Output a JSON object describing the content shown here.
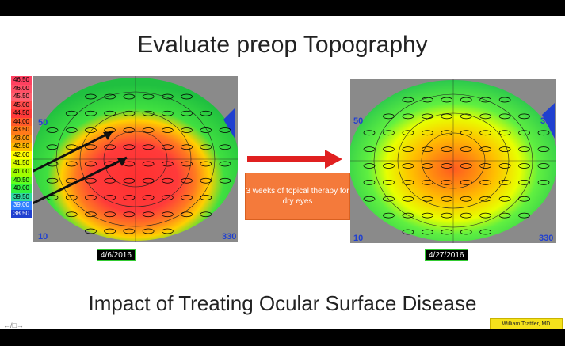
{
  "slide": {
    "title": "Evaluate preop Topography",
    "subtitle": "Impact of Treating Ocular Surface Disease",
    "therapy_note": "3 weeks of topical therapy for dry eyes",
    "credit": "William Trattler, MD",
    "nav_glyphs": "←/□→"
  },
  "scale": {
    "values": [
      "46.50",
      "46.00",
      "45.50",
      "45.00",
      "44.50",
      "44.00",
      "43.50",
      "43.00",
      "42.50",
      "42.00",
      "41.50",
      "41.00",
      "40.50",
      "40.00",
      "39.50",
      "39.00",
      "38.50"
    ],
    "colors": [
      "#ff4060",
      "#ff5066",
      "#ff6070",
      "#ff4a4a",
      "#ff3a3a",
      "#ff5a2a",
      "#ff7a1a",
      "#ff9a10",
      "#ffbb00",
      "#ffff00",
      "#d8ff00",
      "#a0ff00",
      "#60ff20",
      "#30f040",
      "#30d8a0",
      "#3080ff",
      "#2040d0"
    ]
  },
  "maps": {
    "left": {
      "date": "4/6/2016",
      "angle_top": "50",
      "angle_bottom": "10",
      "angle_right": "330"
    },
    "right": {
      "date": "4/27/2016",
      "angle_top": "50",
      "angle_bottom": "10",
      "angle_right_top": "30",
      "angle_right": "330"
    }
  }
}
